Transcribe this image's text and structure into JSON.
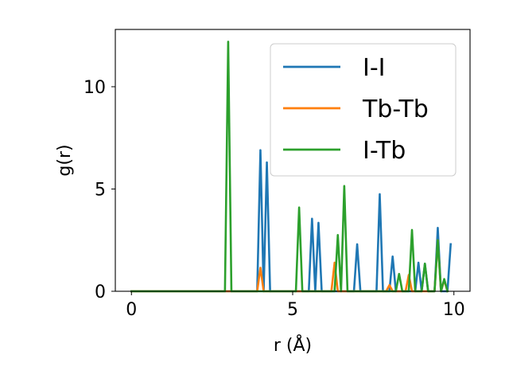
{
  "chart_data": {
    "type": "line",
    "xlabel": "r (Å)",
    "ylabel": "g(r)",
    "xlim": [
      -0.5,
      10.5
    ],
    "ylim": [
      0,
      12.8
    ],
    "xticks": [
      0,
      5,
      10
    ],
    "yticks": [
      0,
      5,
      10
    ],
    "grid": false,
    "legend_position": "top-right",
    "series": [
      {
        "name": "I-I",
        "color": "#1f77b4",
        "x": [
          0,
          3.9,
          4.0,
          4.1,
          4.2,
          4.3,
          5.5,
          5.6,
          5.7,
          5.8,
          5.9,
          6.9,
          7.0,
          7.1,
          7.6,
          7.7,
          7.8,
          8.0,
          8.1,
          8.2,
          8.8,
          8.9,
          9.0,
          9.1,
          9.2,
          9.4,
          9.5,
          9.6,
          9.8,
          9.9
        ],
        "y": [
          0,
          0,
          6.9,
          0,
          6.3,
          0,
          0,
          3.55,
          0,
          3.35,
          0,
          0,
          2.3,
          0,
          0,
          4.75,
          0,
          0,
          1.7,
          0,
          0,
          1.4,
          0,
          1.35,
          0,
          0,
          3.1,
          0,
          0,
          2.3
        ]
      },
      {
        "name": "Tb-Tb",
        "color": "#ff7f0e",
        "x": [
          0,
          3.9,
          4.0,
          4.1,
          6.2,
          6.3,
          6.4,
          7.9,
          8.0,
          8.1,
          8.5,
          8.6,
          8.7,
          9.4,
          9.5,
          9.6,
          9.7,
          9.8
        ],
        "y": [
          0,
          0,
          1.15,
          0,
          0,
          1.4,
          0,
          0,
          0.3,
          0,
          0,
          0.8,
          0,
          0,
          2.5,
          0,
          0.55,
          0
        ]
      },
      {
        "name": "I-Tb",
        "color": "#2ca02c",
        "x": [
          0,
          2.9,
          3.0,
          3.1,
          5.1,
          5.2,
          5.3,
          6.3,
          6.4,
          6.5,
          6.6,
          6.7,
          8.2,
          8.3,
          8.4,
          8.6,
          8.7,
          8.8,
          9.0,
          9.1,
          9.2,
          9.4,
          9.5,
          9.6,
          9.7,
          9.8
        ],
        "y": [
          0,
          0,
          12.2,
          0,
          0,
          4.1,
          0,
          0,
          2.75,
          0,
          5.15,
          0,
          0,
          0.85,
          0,
          0,
          3.0,
          0,
          0,
          1.35,
          0,
          0,
          2.5,
          0,
          0.6,
          0
        ]
      }
    ]
  }
}
